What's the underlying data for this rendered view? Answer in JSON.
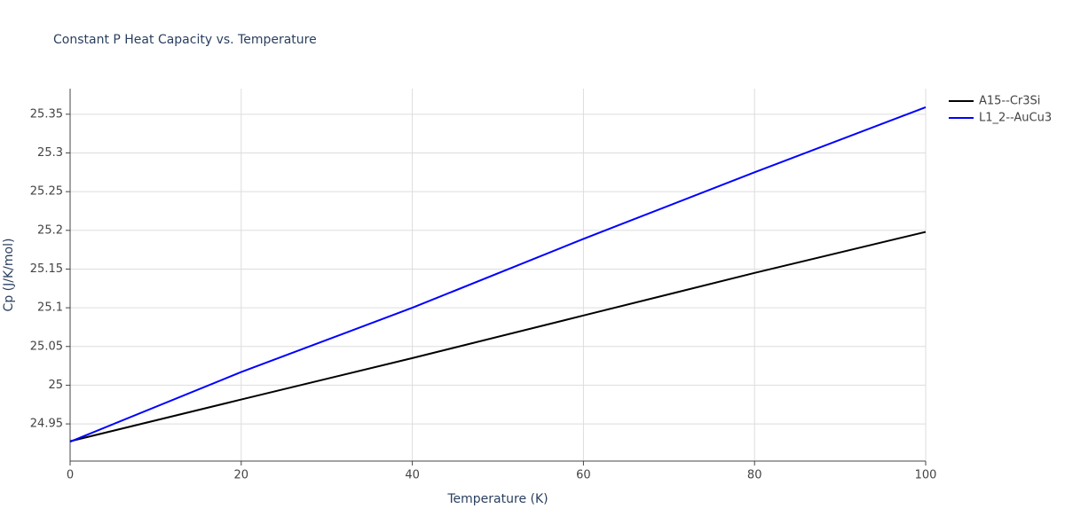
{
  "chart_data": {
    "type": "line",
    "title": "Constant P Heat Capacity vs. Temperature",
    "x_label": "Temperature (K)",
    "y_label": "Cp (J/K/mol)",
    "x": [
      0,
      20,
      40,
      60,
      80,
      100
    ],
    "series": [
      {
        "name": "A15--Cr3Si",
        "color": "#000000",
        "values": [
          24.9276,
          24.9815,
          25.035,
          25.09,
          25.145,
          25.198
        ]
      },
      {
        "name": "L1_2--AuCu3",
        "color": "#0000ff",
        "values": [
          24.927,
          25.017,
          25.1,
          25.189,
          25.275,
          25.359
        ]
      }
    ],
    "xlim": [
      0,
      100
    ],
    "xticks": [
      0,
      20,
      40,
      60,
      80,
      100
    ],
    "ylim": [
      24.902,
      25.383
    ],
    "yticks": [
      24.95,
      25,
      25.05,
      25.1,
      25.15,
      25.2,
      25.25,
      25.3,
      25.35
    ],
    "grid": true,
    "legend": "right"
  }
}
